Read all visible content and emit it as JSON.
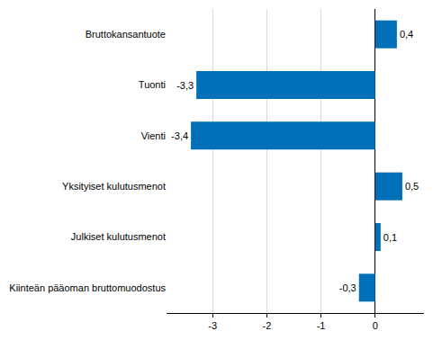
{
  "chart_data": {
    "type": "bar",
    "orientation": "horizontal",
    "categories": [
      "Bruttokansantuote",
      "Tuonti",
      "Vienti",
      "Yksityiset kulutusmenot",
      "Julkiset kulutusmenot",
      "Kiinteän pääoman bruttomuodostus"
    ],
    "values": [
      0.4,
      -3.3,
      -3.4,
      0.5,
      0.1,
      -0.3
    ],
    "value_labels": [
      "0,4",
      "-3,3",
      "-3,4",
      "0,5",
      "0,1",
      "-0,3"
    ],
    "data_labels": true,
    "color": "#0070b8",
    "xlim": [
      -3.85,
      0.9
    ],
    "xticks": [
      -3,
      -2,
      -1,
      0
    ],
    "grid": true
  }
}
